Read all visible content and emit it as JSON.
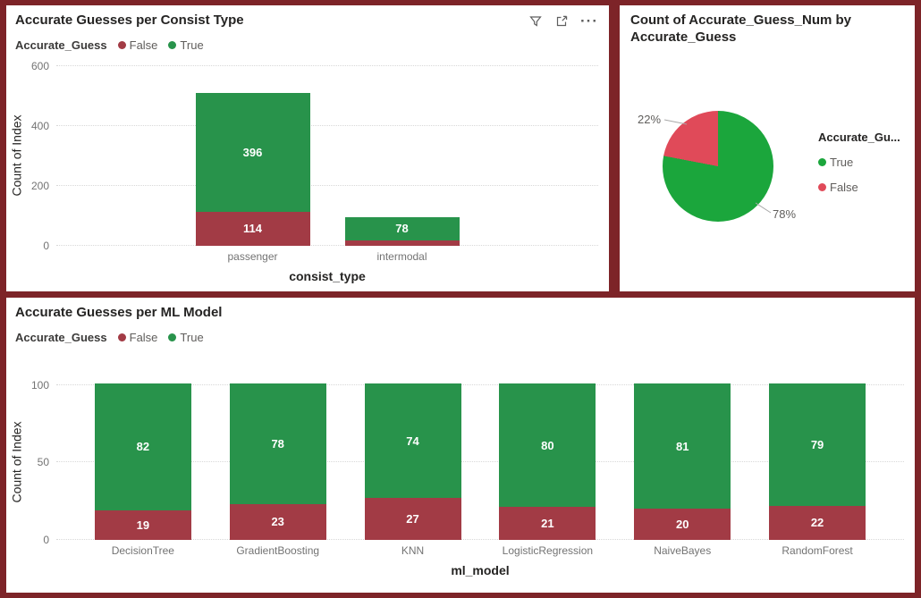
{
  "colors": {
    "frame": "#7D2428",
    "panel_background": "#FFFFFF",
    "title_text": "#252423",
    "tick_text": "#737373",
    "legend_text": "#605E5C",
    "gridline": "#D8D8D8",
    "data_label_text": "#FFFFFF",
    "bar_false_red": "#A23B45",
    "bar_true_green": "#28934B",
    "pie_true_green": "#1BA63C",
    "pie_false_rose": "#E04A59"
  },
  "consist_panel": {
    "icons": [
      {
        "name": "filter-icon"
      },
      {
        "name": "focus-mode-icon"
      },
      {
        "name": "more-options-icon",
        "glyph": "···"
      }
    ]
  },
  "chart_data": [
    {
      "id": "consist",
      "type": "bar",
      "subtype": "stacked-column",
      "title": "Accurate Guesses per Consist Type",
      "xlabel": "consist_type",
      "ylabel": "Count of Index",
      "ylim": [
        0,
        600
      ],
      "yticks": [
        0,
        200,
        400,
        600
      ],
      "grid": "dotted-horizontal",
      "legend_title": "Accurate_Guess",
      "legend_position": "top",
      "categories": [
        "passenger",
        "intermodal"
      ],
      "series": [
        {
          "name": "False",
          "color": "#A23B45",
          "values": [
            114,
            18
          ],
          "labels": [
            "114",
            ""
          ]
        },
        {
          "name": "True",
          "color": "#28934B",
          "values": [
            396,
            78
          ],
          "labels": [
            "396",
            "78"
          ]
        }
      ]
    },
    {
      "id": "accuracy-pie",
      "type": "pie",
      "title": "Count of Accurate_Guess_Num by Accurate_Guess",
      "legend_title": "Accurate_Gu...",
      "legend_position": "right",
      "start_angle_deg": 0,
      "direction": "clockwise",
      "slices": [
        {
          "name": "True",
          "color": "#1BA63C",
          "pct": 78,
          "label": "78%"
        },
        {
          "name": "False",
          "color": "#E04A59",
          "pct": 22,
          "label": "22%"
        }
      ]
    },
    {
      "id": "model",
      "type": "bar",
      "subtype": "stacked-column",
      "title": "Accurate Guesses per ML Model",
      "xlabel": "ml_model",
      "ylabel": "Count of Index",
      "ylim": [
        0,
        100
      ],
      "yticks": [
        0,
        50,
        100
      ],
      "grid": "dotted-horizontal",
      "legend_title": "Accurate_Guess",
      "legend_position": "top",
      "categories": [
        "DecisionTree",
        "GradientBoosting",
        "KNN",
        "LogisticRegression",
        "NaiveBayes",
        "RandomForest"
      ],
      "series": [
        {
          "name": "False",
          "color": "#A23B45",
          "values": [
            19,
            23,
            27,
            21,
            20,
            22
          ],
          "labels": [
            "19",
            "23",
            "27",
            "21",
            "20",
            "22"
          ]
        },
        {
          "name": "True",
          "color": "#28934B",
          "values": [
            82,
            78,
            74,
            80,
            81,
            79
          ],
          "labels": [
            "82",
            "78",
            "74",
            "80",
            "81",
            "79"
          ]
        }
      ]
    }
  ]
}
